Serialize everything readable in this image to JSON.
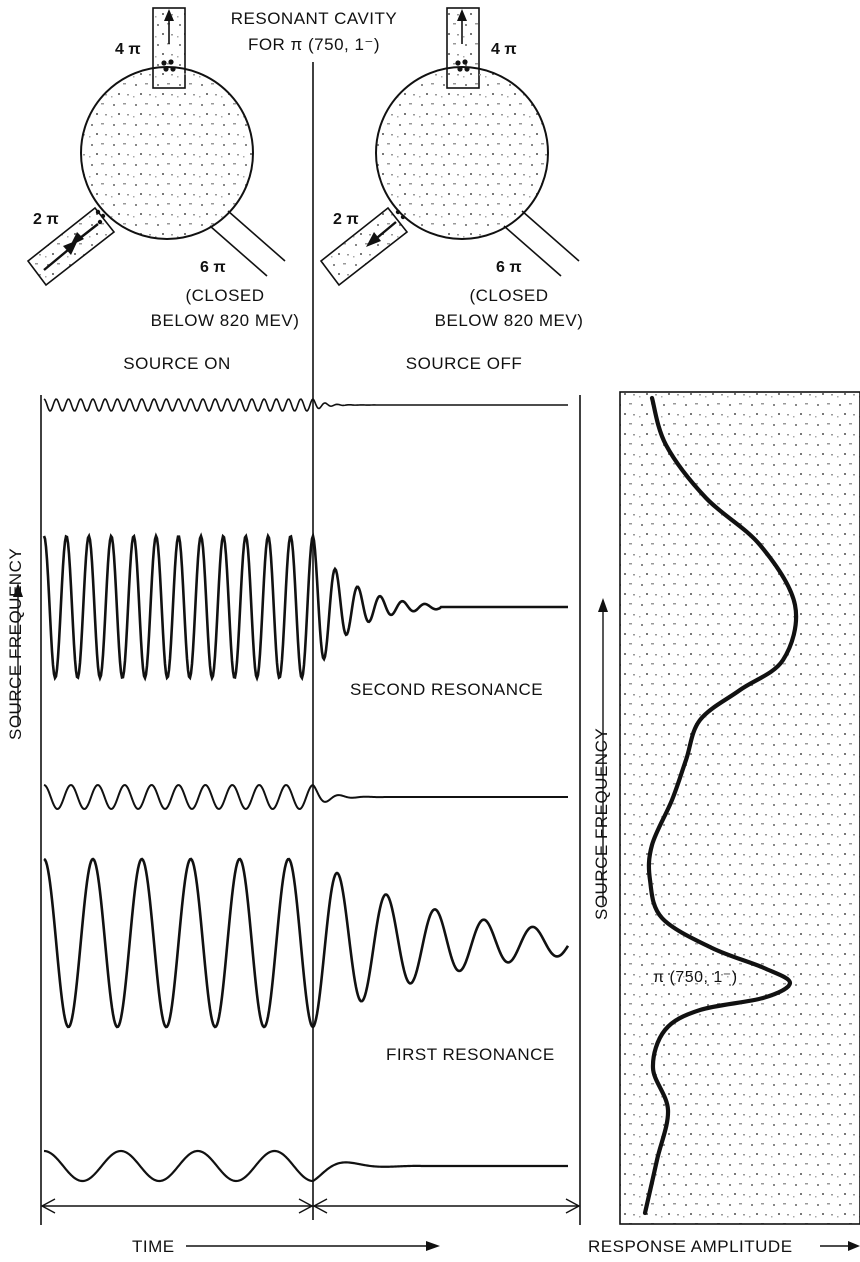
{
  "cavity": {
    "title_line1": "RESONANT CAVITY",
    "title_line2": "FOR π (750, 1⁻)",
    "channel_top": "4 π",
    "channel_left": "2 π",
    "channel_right": "6 π",
    "closed_line1": "(CLOSED",
    "closed_line2": "BELOW 820 MEV)"
  },
  "time_panel": {
    "source_on": "SOURCE ON",
    "source_off": "SOURCE OFF",
    "second_resonance": "SECOND RESONANCE",
    "first_resonance": "FIRST RESONANCE",
    "y_axis": "SOURCE FREQUENCY",
    "x_axis": "TIME"
  },
  "response_panel": {
    "y_axis": "SOURCE FREQUENCY",
    "x_axis": "RESPONSE AMPLITUDE",
    "peak_label": "π (750, 1⁻)"
  },
  "colors": {
    "ink": "#111111",
    "stipple": "#8a8a8a",
    "background": "#ffffff"
  }
}
